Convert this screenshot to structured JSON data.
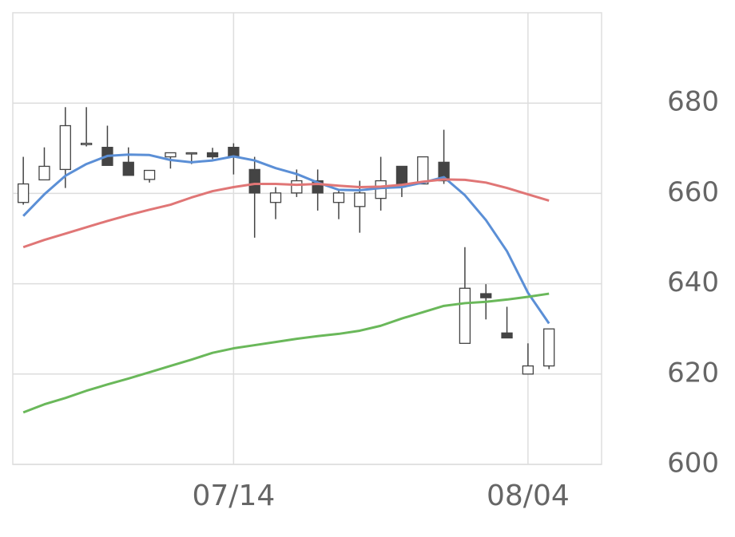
{
  "chart_data": {
    "type": "candlestick",
    "categories": [
      null,
      null,
      null,
      null,
      null,
      null,
      null,
      null,
      null,
      null,
      "07/14",
      null,
      null,
      null,
      null,
      null,
      null,
      null,
      null,
      null,
      null,
      null,
      null,
      null,
      "08/04",
      null
    ],
    "open": [
      658.0,
      663.0,
      665.3,
      670.8,
      670.2,
      666.9,
      663.1,
      668.1,
      668.8,
      669.0,
      670.2,
      665.3,
      658.0,
      660.1,
      662.8,
      658.0,
      657.1,
      658.9,
      666.0,
      662.1,
      666.9,
      626.8,
      637.8,
      629.1,
      620.0,
      621.8
    ],
    "high": [
      668.1,
      670.2,
      679.1,
      679.1,
      675.0,
      670.2,
      665.1,
      669.0,
      669.0,
      670.1,
      671.1,
      668.1,
      661.4,
      665.3,
      665.3,
      661.0,
      662.8,
      668.1,
      666.0,
      668.1,
      674.1,
      648.1,
      639.9,
      634.9,
      626.8,
      630.0
    ],
    "low": [
      657.5,
      663.0,
      661.2,
      670.4,
      666.2,
      664.0,
      662.4,
      665.5,
      666.5,
      667.6,
      664.2,
      650.2,
      654.3,
      659.2,
      656.2,
      654.3,
      651.3,
      656.2,
      659.2,
      662.1,
      662.1,
      626.8,
      632.1,
      628.0,
      620.0,
      621.1
    ],
    "close": [
      662.1,
      666.0,
      675.0,
      671.1,
      666.2,
      664.0,
      665.1,
      669.0,
      669.0,
      668.1,
      668.1,
      660.1,
      660.1,
      662.8,
      660.1,
      660.1,
      660.1,
      662.8,
      662.1,
      668.1,
      662.8,
      639.0,
      636.9,
      628.0,
      621.8,
      630.0
    ],
    "up_color": "#ffffff",
    "down_color": "#444444",
    "candle_stroke": "#444444",
    "lines": [
      {
        "color": "#5b8fd6",
        "values": [
          655.0,
          659.8,
          663.9,
          666.5,
          668.3,
          668.6,
          668.5,
          667.4,
          666.9,
          667.3,
          668.2,
          667.3,
          665.6,
          664.3,
          662.4,
          660.8,
          660.7,
          661.2,
          661.4,
          662.4,
          663.6,
          659.6,
          654.1,
          647.2,
          638.0,
          631.2
        ]
      },
      {
        "color": "#e07676",
        "values": [
          648.1,
          649.7,
          651.1,
          652.5,
          653.9,
          655.2,
          656.4,
          657.5,
          659.1,
          660.5,
          661.4,
          662.1,
          662.1,
          661.9,
          662.1,
          661.7,
          661.4,
          661.5,
          661.9,
          662.6,
          663.1,
          663.0,
          662.4,
          661.2,
          659.8,
          658.4
        ]
      },
      {
        "color": "#6ab85a",
        "values": [
          611.5,
          613.3,
          614.7,
          616.3,
          617.7,
          619.0,
          620.4,
          621.8,
          623.2,
          624.7,
          625.7,
          626.4,
          627.1,
          627.8,
          628.4,
          628.9,
          629.6,
          630.7,
          632.3,
          633.7,
          635.1,
          635.7,
          636.0,
          636.5,
          637.1,
          637.8
        ]
      }
    ],
    "ylim": [
      600,
      700
    ],
    "yticks": [
      600,
      620,
      640,
      660,
      680
    ],
    "grid": true
  }
}
